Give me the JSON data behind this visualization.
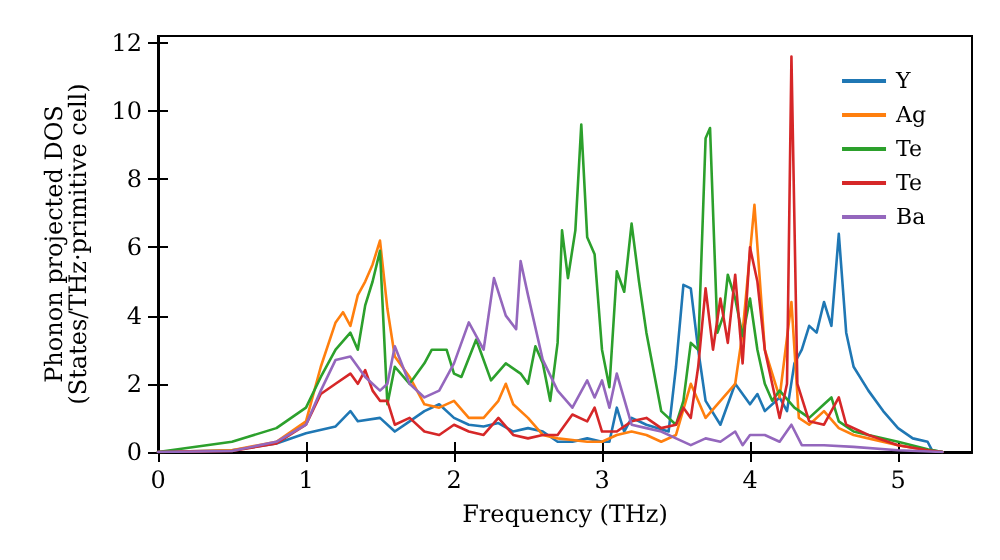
{
  "chart_data": {
    "type": "line",
    "xlabel": "Frequency (THz)",
    "ylabel": "Phonon projected DOS\n(States/THz·primitive cell)",
    "xlim": [
      0,
      5.5
    ],
    "ylim": [
      0,
      12.2
    ],
    "xticks": [
      0,
      1,
      2,
      3,
      4,
      5
    ],
    "yticks": [
      0,
      2,
      4,
      6,
      8,
      10,
      12
    ],
    "grid": false,
    "legend": "top right",
    "marker": "none",
    "line_style": "solid",
    "series": [
      {
        "name": "Y",
        "color": "#1f77b4",
        "x": [
          0,
          0.5,
          0.8,
          1.0,
          1.2,
          1.3,
          1.35,
          1.5,
          1.6,
          1.7,
          1.8,
          1.9,
          2.0,
          2.1,
          2.2,
          2.3,
          2.4,
          2.5,
          2.6,
          2.7,
          2.8,
          2.9,
          3.0,
          3.05,
          3.1,
          3.15,
          3.2,
          3.3,
          3.45,
          3.5,
          3.55,
          3.6,
          3.65,
          3.7,
          3.8,
          3.9,
          4.0,
          4.05,
          4.1,
          4.2,
          4.25,
          4.3,
          4.35,
          4.4,
          4.45,
          4.5,
          4.55,
          4.6,
          4.65,
          4.7,
          4.8,
          4.9,
          5.0,
          5.1,
          5.2,
          5.23,
          5.3
        ],
        "values": [
          0,
          0.05,
          0.25,
          0.55,
          0.75,
          1.2,
          0.9,
          1.0,
          0.6,
          0.9,
          1.2,
          1.4,
          1.0,
          0.8,
          0.75,
          0.85,
          0.6,
          0.7,
          0.6,
          0.3,
          0.3,
          0.4,
          0.3,
          0.3,
          1.3,
          0.6,
          1.0,
          0.8,
          0.6,
          2.5,
          4.9,
          4.8,
          3.0,
          1.5,
          0.8,
          2.0,
          1.4,
          1.7,
          1.2,
          1.6,
          1.2,
          2.6,
          3.0,
          3.7,
          3.5,
          4.4,
          3.7,
          6.4,
          3.5,
          2.5,
          1.8,
          1.2,
          0.7,
          0.4,
          0.3,
          0.05,
          0
        ]
      },
      {
        "name": "Ag",
        "color": "#ff7f0e",
        "x": [
          0,
          0.5,
          0.8,
          1.0,
          1.1,
          1.2,
          1.25,
          1.3,
          1.35,
          1.4,
          1.45,
          1.5,
          1.55,
          1.6,
          1.7,
          1.8,
          1.9,
          2.0,
          2.1,
          2.2,
          2.3,
          2.35,
          2.4,
          2.5,
          2.6,
          2.7,
          2.8,
          2.9,
          3.0,
          3.1,
          3.2,
          3.3,
          3.4,
          3.5,
          3.6,
          3.7,
          3.8,
          3.9,
          3.95,
          4.03,
          4.1,
          4.2,
          4.28,
          4.33,
          4.4,
          4.5,
          4.6,
          4.7,
          4.8,
          5.0,
          5.2,
          5.3
        ],
        "values": [
          0,
          0.05,
          0.3,
          0.9,
          2.5,
          3.8,
          4.1,
          3.7,
          4.6,
          5.0,
          5.5,
          6.2,
          4.2,
          2.8,
          2.2,
          1.4,
          1.3,
          1.5,
          1.0,
          1.0,
          1.5,
          2.0,
          1.4,
          1.0,
          0.5,
          0.4,
          0.35,
          0.3,
          0.3,
          0.5,
          0.6,
          0.5,
          0.3,
          0.5,
          2.0,
          1.0,
          1.5,
          2.0,
          3.5,
          7.25,
          3.0,
          1.6,
          4.4,
          1.0,
          0.8,
          1.2,
          0.7,
          0.5,
          0.4,
          0.2,
          0.05,
          0
        ]
      },
      {
        "name": "Te",
        "color": "#2ca02c",
        "x": [
          0,
          0.5,
          0.8,
          1.0,
          1.1,
          1.2,
          1.3,
          1.35,
          1.4,
          1.45,
          1.5,
          1.55,
          1.6,
          1.7,
          1.8,
          1.85,
          1.95,
          2.0,
          2.05,
          2.15,
          2.25,
          2.35,
          2.45,
          2.5,
          2.55,
          2.6,
          2.65,
          2.7,
          2.73,
          2.77,
          2.82,
          2.86,
          2.9,
          2.95,
          3.0,
          3.05,
          3.1,
          3.15,
          3.2,
          3.25,
          3.3,
          3.4,
          3.5,
          3.55,
          3.6,
          3.65,
          3.7,
          3.73,
          3.78,
          3.82,
          3.85,
          3.9,
          3.95,
          4.0,
          4.05,
          4.1,
          4.15,
          4.2,
          4.3,
          4.4,
          4.5,
          4.55,
          4.6,
          4.7,
          4.8,
          5.0,
          5.2,
          5.3
        ],
        "values": [
          0,
          0.3,
          0.7,
          1.3,
          2.2,
          3.0,
          3.5,
          3.0,
          4.3,
          5.0,
          5.9,
          1.4,
          2.5,
          2.0,
          2.6,
          3.0,
          3.0,
          2.3,
          2.2,
          3.3,
          2.1,
          2.6,
          2.3,
          2.0,
          3.1,
          2.6,
          1.5,
          3.2,
          6.5,
          5.1,
          6.5,
          9.6,
          6.3,
          5.8,
          3.0,
          1.9,
          5.3,
          4.7,
          6.7,
          5.0,
          3.5,
          1.2,
          0.8,
          1.5,
          3.2,
          3.0,
          9.2,
          9.5,
          3.5,
          4.0,
          5.2,
          4.5,
          3.4,
          4.5,
          3.0,
          2.0,
          1.5,
          1.8,
          1.3,
          1.0,
          1.4,
          1.6,
          0.9,
          0.6,
          0.5,
          0.3,
          0.08,
          0
        ]
      },
      {
        "name": "Te",
        "color": "#d62728",
        "x": [
          0,
          0.5,
          0.8,
          1.0,
          1.1,
          1.2,
          1.3,
          1.35,
          1.4,
          1.45,
          1.5,
          1.55,
          1.6,
          1.7,
          1.8,
          1.9,
          2.0,
          2.1,
          2.2,
          2.3,
          2.4,
          2.5,
          2.6,
          2.7,
          2.8,
          2.9,
          2.95,
          3.0,
          3.1,
          3.2,
          3.3,
          3.4,
          3.5,
          3.55,
          3.6,
          3.65,
          3.7,
          3.75,
          3.8,
          3.85,
          3.9,
          3.95,
          4.0,
          4.05,
          4.1,
          4.2,
          4.25,
          4.28,
          4.32,
          4.4,
          4.5,
          4.6,
          4.65,
          4.8,
          5.0,
          5.2,
          5.3
        ],
        "values": [
          0,
          0.03,
          0.25,
          0.8,
          1.7,
          2.0,
          2.3,
          2.0,
          2.4,
          1.8,
          1.5,
          1.5,
          0.8,
          1.0,
          0.6,
          0.5,
          0.8,
          0.6,
          0.5,
          1.0,
          0.5,
          0.4,
          0.5,
          0.5,
          1.1,
          0.9,
          1.3,
          0.6,
          0.6,
          0.9,
          1.0,
          0.7,
          0.8,
          1.3,
          1.0,
          2.5,
          4.8,
          3.0,
          4.5,
          3.2,
          5.2,
          2.6,
          6.0,
          5.0,
          3.0,
          1.0,
          2.0,
          11.6,
          2.0,
          0.9,
          0.8,
          1.6,
          0.8,
          0.5,
          0.2,
          0.05,
          0
        ]
      },
      {
        "name": "Ba",
        "color": "#9467bd",
        "x": [
          0,
          0.5,
          0.8,
          1.0,
          1.1,
          1.2,
          1.3,
          1.4,
          1.5,
          1.55,
          1.6,
          1.7,
          1.8,
          1.9,
          2.0,
          2.1,
          2.2,
          2.27,
          2.35,
          2.42,
          2.45,
          2.5,
          2.6,
          2.7,
          2.8,
          2.9,
          2.95,
          3.0,
          3.05,
          3.1,
          3.2,
          3.3,
          3.4,
          3.5,
          3.6,
          3.7,
          3.8,
          3.9,
          3.95,
          4.0,
          4.1,
          4.2,
          4.28,
          4.35,
          4.5,
          4.7,
          5.0,
          5.3
        ],
        "values": [
          0,
          0.03,
          0.3,
          0.8,
          1.8,
          2.7,
          2.8,
          2.2,
          1.8,
          2.0,
          3.1,
          2.0,
          1.6,
          1.8,
          2.6,
          3.8,
          3.0,
          5.1,
          4.0,
          3.6,
          5.6,
          4.6,
          2.7,
          1.8,
          1.3,
          2.1,
          1.6,
          2.1,
          1.3,
          2.3,
          0.8,
          0.7,
          0.6,
          0.4,
          0.2,
          0.4,
          0.3,
          0.6,
          0.2,
          0.5,
          0.5,
          0.3,
          0.8,
          0.2,
          0.2,
          0.15,
          0.05,
          0
        ]
      }
    ]
  }
}
